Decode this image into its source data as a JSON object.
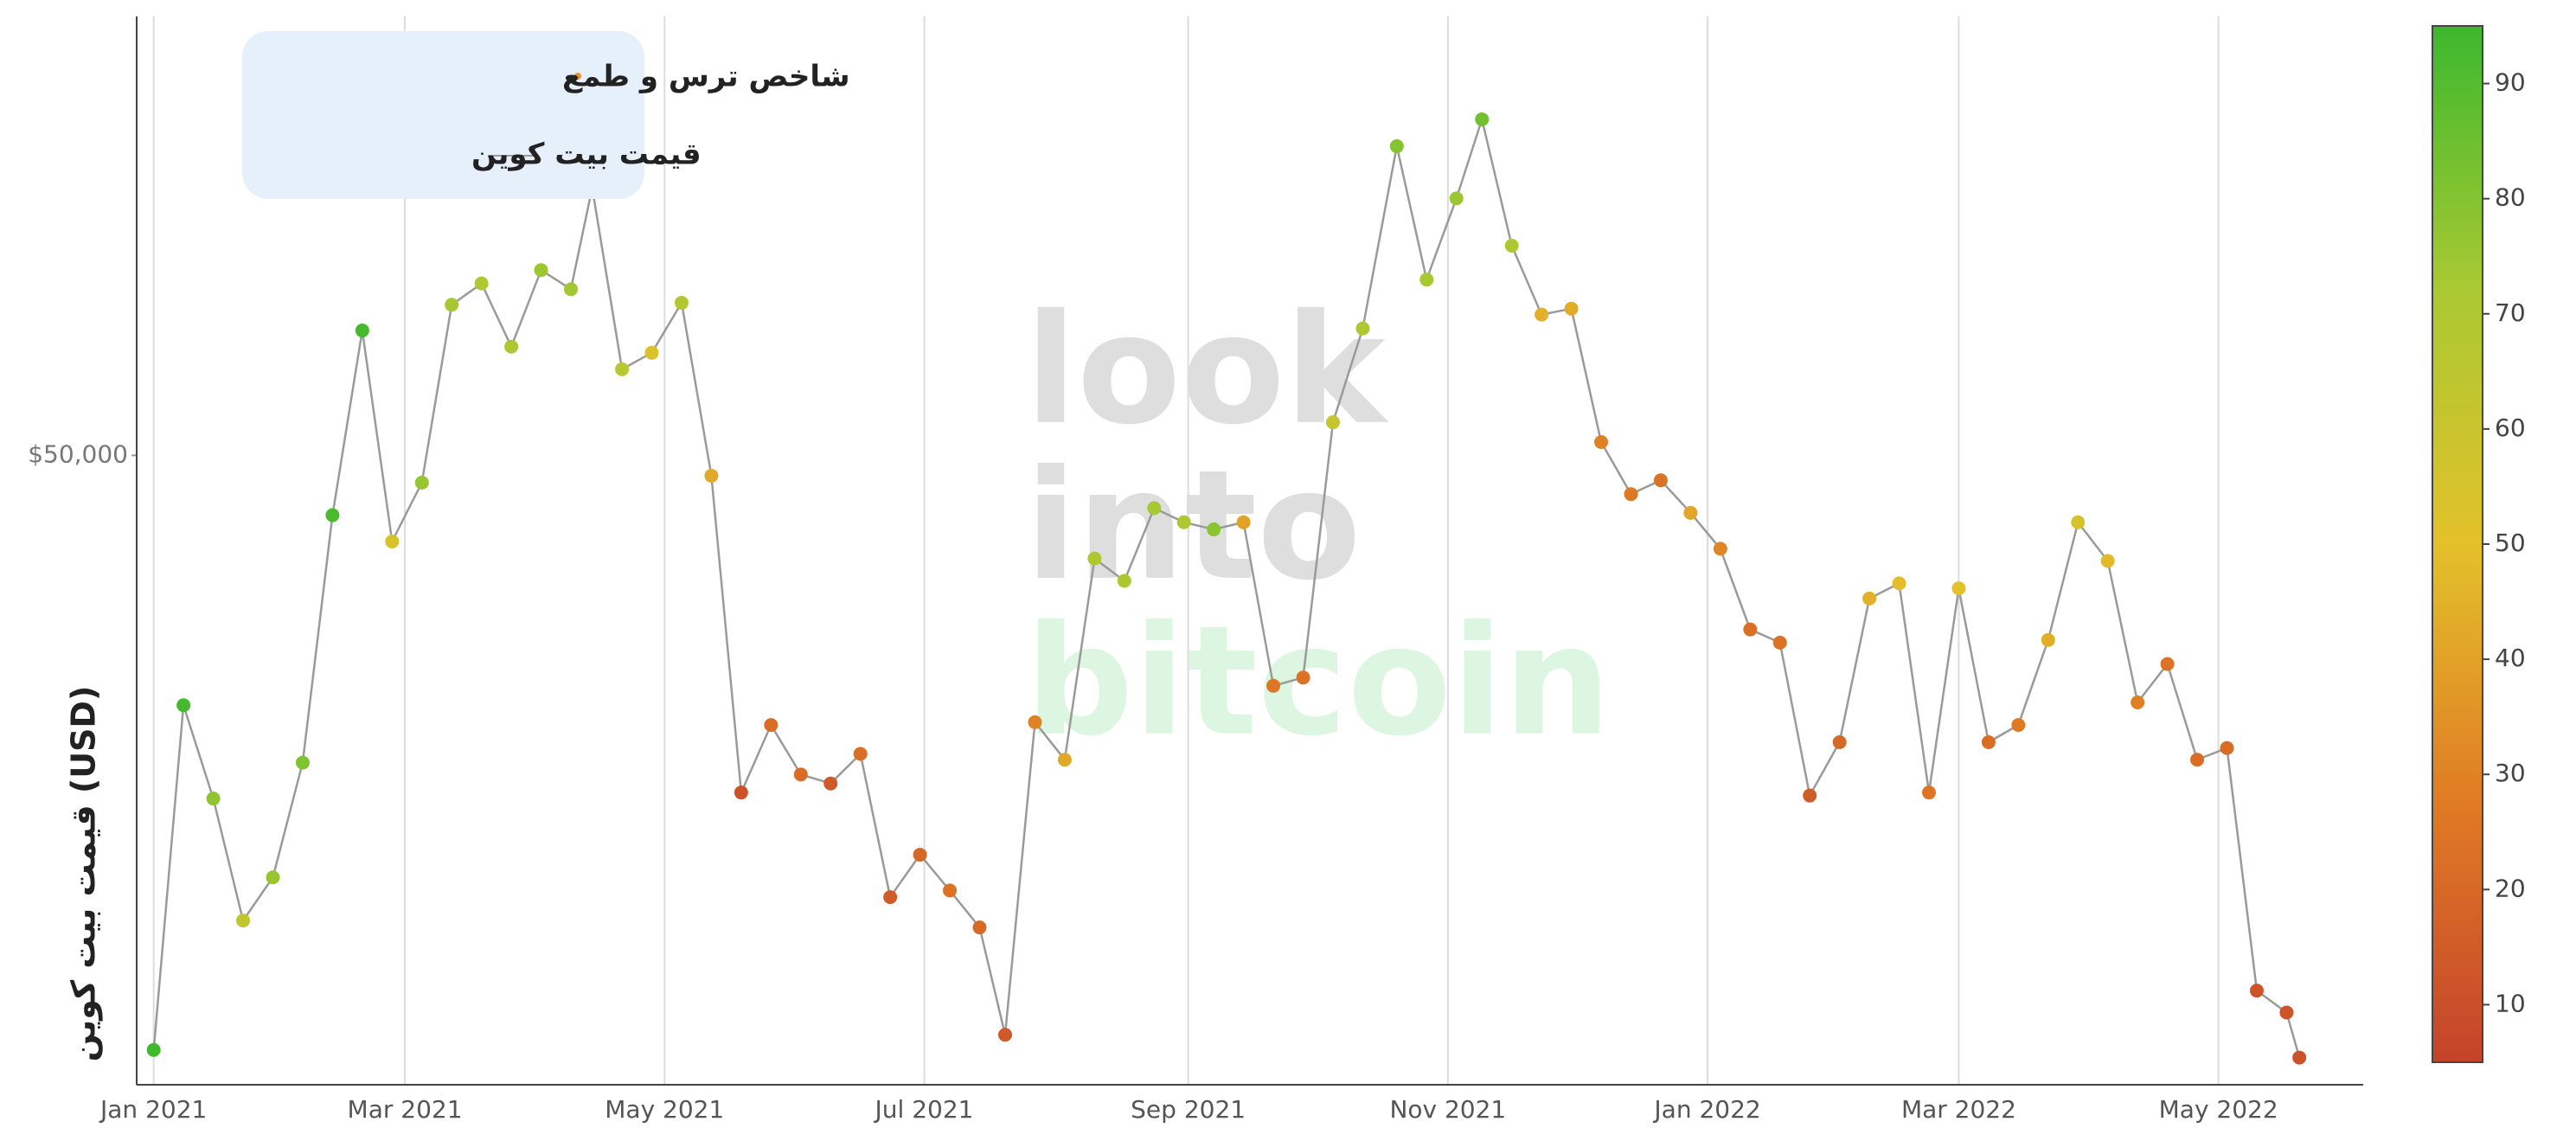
{
  "chart_data": {
    "type": "line",
    "y_label": "قیمت بیت کوین (USD)",
    "watermark": [
      "look",
      "into",
      "bitcoin"
    ],
    "x": [
      "2021-01-01",
      "2021-01-08",
      "2021-01-15",
      "2021-01-22",
      "2021-01-29",
      "2021-02-05",
      "2021-02-12",
      "2021-02-19",
      "2021-02-26",
      "2021-03-05",
      "2021-03-12",
      "2021-03-19",
      "2021-03-26",
      "2021-04-02",
      "2021-04-09",
      "2021-04-14",
      "2021-04-21",
      "2021-04-28",
      "2021-05-05",
      "2021-05-12",
      "2021-05-19",
      "2021-05-26",
      "2021-06-02",
      "2021-06-09",
      "2021-06-16",
      "2021-06-23",
      "2021-06-30",
      "2021-07-07",
      "2021-07-14",
      "2021-07-20",
      "2021-07-27",
      "2021-08-03",
      "2021-08-10",
      "2021-08-17",
      "2021-08-24",
      "2021-08-31",
      "2021-09-07",
      "2021-09-14",
      "2021-09-21",
      "2021-09-28",
      "2021-10-05",
      "2021-10-12",
      "2021-10-20",
      "2021-10-27",
      "2021-11-03",
      "2021-11-09",
      "2021-11-16",
      "2021-11-23",
      "2021-11-30",
      "2021-12-07",
      "2021-12-14",
      "2021-12-21",
      "2021-12-28",
      "2022-01-04",
      "2022-01-11",
      "2022-01-18",
      "2022-01-25",
      "2022-02-01",
      "2022-02-08",
      "2022-02-15",
      "2022-02-22",
      "2022-03-01",
      "2022-03-08",
      "2022-03-15",
      "2022-03-22",
      "2022-03-29",
      "2022-04-05",
      "2022-04-12",
      "2022-04-19",
      "2022-04-26",
      "2022-05-03",
      "2022-05-10",
      "2022-05-17",
      "2022-05-20"
    ],
    "series": [
      {
        "name": "قیمت بیت کوین",
        "color": "#9a9a9a",
        "values": [
          29400,
          40000,
          36800,
          33000,
          34300,
          38000,
          47400,
          55900,
          46300,
          48800,
          57200,
          58300,
          55100,
          59000,
          58000,
          63500,
          54000,
          54800,
          57300,
          49100,
          37000,
          39300,
          37600,
          37300,
          38300,
          33700,
          35000,
          33900,
          32800,
          29800,
          39400,
          38100,
          45600,
          44700,
          47700,
          47100,
          46800,
          47100,
          40700,
          41000,
          51500,
          56000,
          65900,
          58500,
          62900,
          67500,
          60300,
          56700,
          57000,
          50600,
          48300,
          48900,
          47500,
          46000,
          42800,
          42300,
          36900,
          38700,
          44000,
          44600,
          37000,
          44400,
          38700,
          39300,
          42400,
          47100,
          45500,
          40100,
          41500,
          38100,
          38500,
          31000,
          30400,
          29200
        ]
      },
      {
        "name": "شاخص ترس و طمع",
        "color": "#e8912b",
        "values": [
          94,
          93,
          78,
          63,
          76,
          81,
          92,
          93,
          55,
          76,
          73,
          70,
          71,
          75,
          74,
          75,
          66,
          54,
          68,
          42,
          11,
          22,
          22,
          14,
          23,
          15,
          20,
          24,
          20,
          14,
          30,
          42,
          70,
          71,
          73,
          70,
          79,
          40,
          26,
          24,
          61,
          70,
          80,
          73,
          75,
          84,
          71,
          45,
          43,
          29,
          27,
          24,
          41,
          31,
          23,
          24,
          15,
          20,
          45,
          49,
          25,
          50,
          22,
          27,
          44,
          55,
          48,
          29,
          24,
          22,
          22,
          12,
          12,
          11
        ]
      }
    ],
    "xlim": [
      "2020-12-28",
      "2022-06-04"
    ],
    "xticks": [
      {
        "value": "2021-01-01",
        "label": "Jan 2021"
      },
      {
        "value": "2021-03-01",
        "label": "Mar 2021"
      },
      {
        "value": "2021-05-01",
        "label": "May 2021"
      },
      {
        "value": "2021-07-01",
        "label": "Jul 2021"
      },
      {
        "value": "2021-09-01",
        "label": "Sep 2021"
      },
      {
        "value": "2021-11-01",
        "label": "Nov 2021"
      },
      {
        "value": "2022-01-01",
        "label": "Jan 2022"
      },
      {
        "value": "2022-03-01",
        "label": "Mar 2022"
      },
      {
        "value": "2022-05-01",
        "label": "May 2022"
      }
    ],
    "ylim": [
      28500,
      74000
    ],
    "log_y": true,
    "yticks": [
      {
        "value": 50000,
        "label": "$50,000"
      }
    ],
    "grid": true,
    "colorscale": [
      "#c4432b",
      "#e07b24",
      "#e3c12a",
      "#a8c932",
      "#3cb82e"
    ],
    "colorlim": [
      5,
      95
    ],
    "colorticks": [
      10,
      20,
      30,
      40,
      50,
      60,
      70,
      80,
      90
    ]
  }
}
